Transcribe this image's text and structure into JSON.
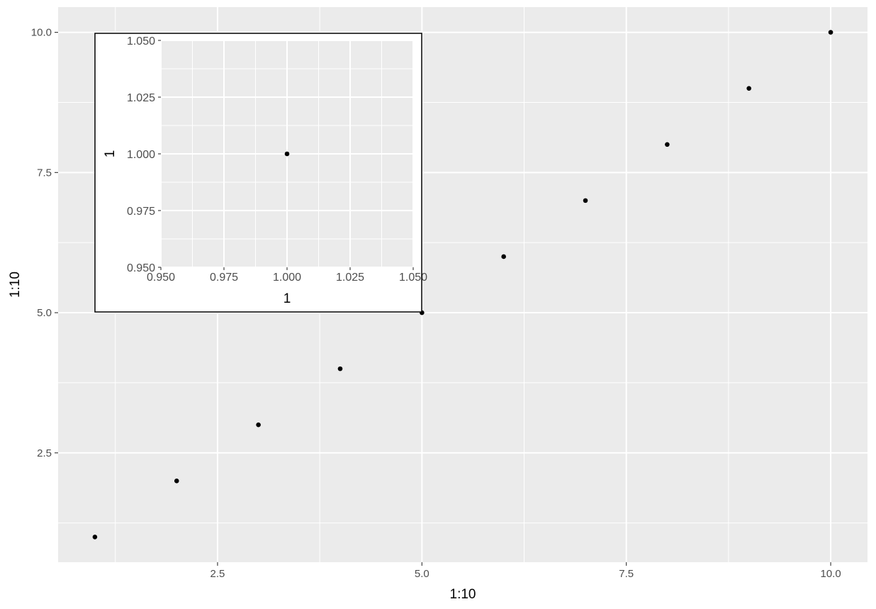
{
  "chart_data": [
    {
      "id": "main",
      "type": "scatter",
      "x": [
        1,
        2,
        3,
        4,
        5,
        6,
        7,
        8,
        9,
        10
      ],
      "y": [
        1,
        2,
        3,
        4,
        5,
        6,
        7,
        8,
        9,
        10
      ],
      "xlabel": "1:10",
      "ylabel": "1:10",
      "xlim": [
        0.55,
        10.45
      ],
      "ylim": [
        0.55,
        10.45
      ],
      "x_ticks": [
        2.5,
        5.0,
        7.5,
        10.0
      ],
      "x_tick_labels": [
        "2.5",
        "5.0",
        "7.5",
        "10.0"
      ],
      "y_ticks": [
        2.5,
        5.0,
        7.5,
        10.0
      ],
      "y_tick_labels": [
        "2.5",
        "5.0",
        "7.5",
        "10.0"
      ],
      "grid": true,
      "panel_color": "#ebebeb",
      "point_color": "#000000"
    },
    {
      "id": "inset",
      "type": "scatter",
      "placement": "top-left inset",
      "x": [
        1.0
      ],
      "y": [
        1.0
      ],
      "xlabel": "1",
      "ylabel": "1",
      "xlim": [
        0.95,
        1.05
      ],
      "ylim": [
        0.95,
        1.05
      ],
      "x_ticks": [
        0.95,
        0.975,
        1.0,
        1.025,
        1.05
      ],
      "x_tick_labels": [
        "0.950",
        "0.975",
        "1.000",
        "1.025",
        "1.050"
      ],
      "y_ticks": [
        0.95,
        0.975,
        1.0,
        1.025,
        1.05
      ],
      "y_tick_labels": [
        "0.950",
        "0.975",
        "1.000",
        "1.025",
        "1.050"
      ],
      "grid": true,
      "panel_color": "#ebebeb",
      "point_color": "#000000"
    }
  ]
}
